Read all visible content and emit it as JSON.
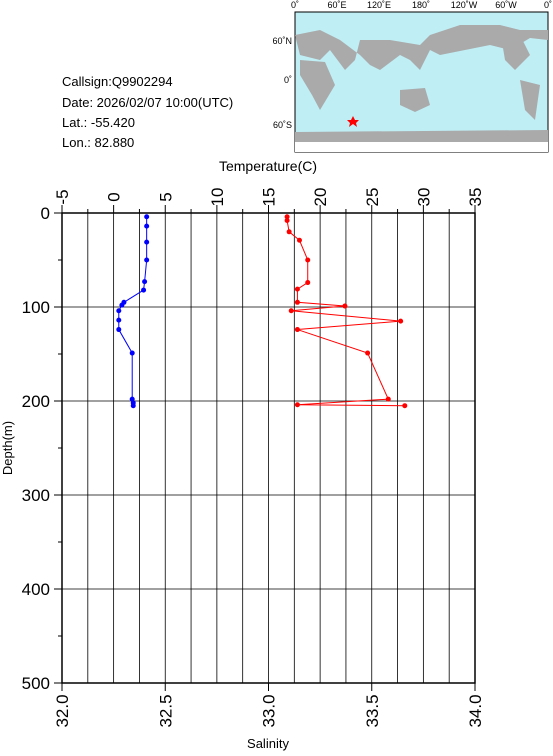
{
  "chart_data": {
    "type": "profile",
    "info": [
      "Callsign:Q9902294",
      "Date:  2026/02/07 10:00(UTC)",
      "Lat.:  -55.420",
      "Lon.:  82.880"
    ],
    "map": {
      "lon_labels": [
        "0˚",
        "60˚E",
        "120˚E",
        "180˚",
        "120˚W",
        "60˚W",
        "0˚"
      ],
      "lat_labels": [
        "60˚N",
        "0˚",
        "60˚S"
      ]
    },
    "xlabel": "Temperature(C)",
    "x2label": "Salinity",
    "ylabel": "Depth(m)",
    "xlim": [
      -5,
      35
    ],
    "xticks": [
      -5,
      0,
      5,
      10,
      15,
      20,
      25,
      30,
      35
    ],
    "xminor": [
      -2.5,
      2.5,
      7.5,
      12.5,
      17.5,
      22.5,
      27.5,
      32.5
    ],
    "x2lim": [
      32,
      34
    ],
    "x2ticks": [
      {
        "value": 32,
        "label": "32.0"
      },
      {
        "value": 32.5,
        "label": "32.5"
      },
      {
        "value": 33,
        "label": "33.0"
      },
      {
        "value": 33.5,
        "label": "33.5"
      },
      {
        "value": 34,
        "label": "34.0"
      }
    ],
    "ylim": [
      0,
      500
    ],
    "yticks": [
      0,
      100,
      200,
      300,
      400,
      500
    ],
    "yminor": [
      50,
      150,
      250,
      350,
      450
    ],
    "series": [
      {
        "color": "#0000ff",
        "axis": "x",
        "values": [
          3.2,
          3.2,
          3.2,
          3.2,
          3.0,
          2.9,
          1.0,
          0.8,
          0.5,
          0.5,
          0.5,
          1.8,
          1.8,
          1.9,
          1.9
        ],
        "depths": [
          4,
          14,
          31,
          50,
          73,
          82,
          95,
          98,
          104,
          114,
          124,
          149,
          198,
          202,
          205
        ]
      },
      {
        "color": "#ff0000",
        "axis": "x2",
        "values": [
          33.09,
          33.09,
          33.1,
          33.15,
          33.19,
          33.19,
          33.14,
          33.14,
          33.37,
          33.11,
          33.64,
          33.14,
          33.48,
          33.58,
          33.14,
          33.66
        ],
        "depths": [
          4,
          8,
          20,
          29,
          50,
          74,
          81,
          95,
          99,
          104,
          115,
          124,
          149,
          198,
          204,
          205
        ]
      }
    ]
  }
}
